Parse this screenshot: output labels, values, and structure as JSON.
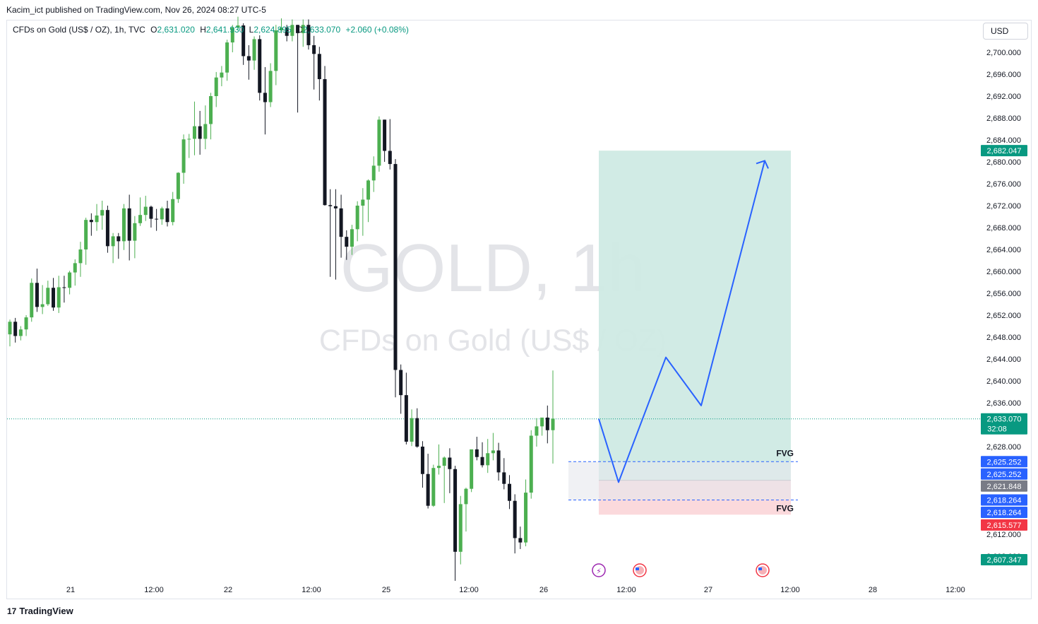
{
  "header": {
    "publisher_line": "Kacim_ict published on TradingView.com, Nov 26, 2024 08:27 UTC-5"
  },
  "legend": {
    "symbol": "CFDs on Gold (US$ / OZ), 1h, TVC",
    "open_label": "O",
    "open": "2,631.020",
    "high_label": "H",
    "high": "2,641.930",
    "low_label": "L",
    "low": "2,624.895",
    "close_label": "C",
    "close": "2,633.070",
    "change": "+2.060 (+0.08%)"
  },
  "currency_button": "USD",
  "watermark": {
    "title": "GOLD, 1h",
    "subtitle": "CFDs on Gold (US$ / OZ)"
  },
  "footer": {
    "brand": "TradingView",
    "logo_text": "17"
  },
  "colors": {
    "up": "#4caf50",
    "down": "#131722",
    "target_zone": "#cfeae4",
    "stop_zone": "#fbd9dc",
    "path": "#2962ff",
    "fvg_fill": "#e6e7ec",
    "last_price": "#089981"
  },
  "annotations": {
    "fvg_upper": "FVG",
    "fvg_lower": "FVG"
  },
  "price_axis": {
    "ticks": [
      "2,700.000",
      "2,696.000",
      "2,692.000",
      "2,688.000",
      "2,684.000",
      "2,680.000",
      "2,676.000",
      "2,672.000",
      "2,668.000",
      "2,664.000",
      "2,660.000",
      "2,656.000",
      "2,652.000",
      "2,648.000",
      "2,644.000",
      "2,640.000",
      "2,636.000",
      "2,628.000",
      "2,612.000",
      "2,608.000"
    ],
    "badges": [
      {
        "text": "2,682.047",
        "color": "#089981",
        "price": 2682.047
      },
      {
        "text": "2,633.070",
        "color": "#089981",
        "price": 2633.07,
        "sub": "32:08"
      },
      {
        "text": "2,625.252",
        "color": "#2962ff",
        "price": 2625.252
      },
      {
        "text": "2,625.252",
        "color": "#2962ff",
        "price": 2623.0
      },
      {
        "text": "2,621.848",
        "color": "#787b86",
        "price": 2620.8
      },
      {
        "text": "2,618.264",
        "color": "#2962ff",
        "price": 2618.264
      },
      {
        "text": "2,618.264",
        "color": "#2962ff",
        "price": 2616.0
      },
      {
        "text": "2,615.577",
        "color": "#f23645",
        "price": 2613.7
      },
      {
        "text": "2,607.347",
        "color": "#089981",
        "price": 2607.347
      }
    ]
  },
  "time_axis": {
    "labels": [
      "21",
      "12:00",
      "22",
      "12:00",
      "25",
      "12:00",
      "26",
      "12:00",
      "27",
      "12:00",
      "28",
      "12:00"
    ]
  },
  "chart_data": {
    "type": "candlestick",
    "symbol": "GOLD",
    "interval": "1h",
    "ylim": [
      2598,
      2705
    ],
    "y_reference": {
      "price": 2633.07,
      "style": "dotted"
    },
    "candles": [
      [
        2648.5,
        2651.2,
        2646.3,
        2650.8
      ],
      [
        2650.8,
        2651.5,
        2647.0,
        2648.2
      ],
      [
        2648.2,
        2650.0,
        2647.4,
        2649.4
      ],
      [
        2649.4,
        2652.0,
        2648.2,
        2651.6
      ],
      [
        2651.6,
        2658.7,
        2650.8,
        2657.9
      ],
      [
        2657.9,
        2660.5,
        2652.6,
        2653.5
      ],
      [
        2653.5,
        2657.5,
        2652.2,
        2654.0
      ],
      [
        2654.0,
        2658.3,
        2653.7,
        2657.0
      ],
      [
        2657.0,
        2658.8,
        2652.8,
        2653.4
      ],
      [
        2653.4,
        2659.2,
        2652.4,
        2657.1
      ],
      [
        2657.1,
        2659.2,
        2654.3,
        2657.0
      ],
      [
        2657.0,
        2660.1,
        2655.8,
        2659.8
      ],
      [
        2659.8,
        2662.2,
        2657.4,
        2661.5
      ],
      [
        2661.5,
        2665.4,
        2659.0,
        2664.0
      ],
      [
        2664.0,
        2669.8,
        2661.2,
        2669.4
      ],
      [
        2669.4,
        2670.6,
        2666.5,
        2669.0
      ],
      [
        2669.0,
        2672.3,
        2667.4,
        2670.2
      ],
      [
        2670.2,
        2672.9,
        2667.6,
        2671.2
      ],
      [
        2671.2,
        2672.0,
        2663.4,
        2664.6
      ],
      [
        2664.6,
        2667.0,
        2661.5,
        2666.4
      ],
      [
        2666.4,
        2667.0,
        2662.3,
        2665.5
      ],
      [
        2665.5,
        2672.3,
        2663.9,
        2671.5
      ],
      [
        2671.5,
        2674.0,
        2662.0,
        2665.6
      ],
      [
        2665.6,
        2670.1,
        2662.4,
        2668.8
      ],
      [
        2668.8,
        2673.5,
        2668.3,
        2670.3
      ],
      [
        2670.3,
        2673.8,
        2669.2,
        2671.8
      ],
      [
        2671.8,
        2672.0,
        2668.0,
        2669.6
      ],
      [
        2669.6,
        2671.4,
        2667.4,
        2669.5
      ],
      [
        2669.5,
        2671.8,
        2668.5,
        2671.5
      ],
      [
        2671.5,
        2672.9,
        2668.2,
        2669.0
      ],
      [
        2669.0,
        2674.5,
        2668.4,
        2673.2
      ],
      [
        2673.2,
        2678.1,
        2672.5,
        2678.0
      ],
      [
        2678.0,
        2685.0,
        2676.0,
        2684.1
      ],
      [
        2684.1,
        2685.1,
        2680.7,
        2684.2
      ],
      [
        2684.2,
        2691.0,
        2681.2,
        2686.5
      ],
      [
        2686.5,
        2689.3,
        2681.3,
        2684.2
      ],
      [
        2684.2,
        2690.3,
        2682.3,
        2686.9
      ],
      [
        2686.9,
        2692.6,
        2684.1,
        2692.0
      ],
      [
        2692.0,
        2696.4,
        2690.0,
        2695.4
      ],
      [
        2695.4,
        2697.5,
        2693.8,
        2696.3
      ],
      [
        2696.3,
        2702.3,
        2694.8,
        2701.8
      ],
      [
        2701.8,
        2705.0,
        2700.0,
        2704.5
      ],
      [
        2704.5,
        2706.5,
        2704.0,
        2704.9
      ],
      [
        2704.9,
        2705.3,
        2697.7,
        2699.3
      ],
      [
        2699.3,
        2701.3,
        2695.0,
        2698.5
      ],
      [
        2698.5,
        2702.9,
        2696.8,
        2702.4
      ],
      [
        2702.4,
        2703.1,
        2691.2,
        2692.6
      ],
      [
        2692.6,
        2697.3,
        2685.0,
        2690.9
      ],
      [
        2690.9,
        2698.0,
        2690.0,
        2696.6
      ],
      [
        2696.6,
        2705.0,
        2694.0,
        2704.0
      ],
      [
        2704.0,
        2706.2,
        2703.5,
        2704.5
      ],
      [
        2704.5,
        2705.0,
        2702.0,
        2703.0
      ],
      [
        2703.0,
        2706.0,
        2702.0,
        2705.0
      ],
      [
        2705.0,
        2705.0,
        2689.0,
        2703.5
      ],
      [
        2703.5,
        2706.0,
        2701.0,
        2705.0
      ],
      [
        2705.0,
        2706.0,
        2700.5,
        2701.3
      ],
      [
        2701.3,
        2703.0,
        2693.2,
        2699.7
      ],
      [
        2699.7,
        2701.0,
        2691.2,
        2695.1
      ],
      [
        2695.1,
        2697.5,
        2672.0,
        2672.1
      ],
      [
        2672.1,
        2675.0,
        2659.0,
        2671.9
      ],
      [
        2671.9,
        2675.0,
        2658.5,
        2671.5
      ],
      [
        2671.5,
        2674.0,
        2662.5,
        2666.3
      ],
      [
        2666.3,
        2667.5,
        2662.1,
        2664.5
      ],
      [
        2664.5,
        2668.5,
        2663.0,
        2667.7
      ],
      [
        2667.7,
        2672.8,
        2665.5,
        2672.0
      ],
      [
        2672.0,
        2675.2,
        2666.5,
        2673.1
      ],
      [
        2673.1,
        2676.8,
        2669.0,
        2676.6
      ],
      [
        2676.6,
        2681.0,
        2674.5,
        2679.3
      ],
      [
        2679.3,
        2688.3,
        2678.2,
        2687.7
      ],
      [
        2687.7,
        2687.7,
        2680.0,
        2682.0
      ],
      [
        2682.0,
        2687.8,
        2678.6,
        2679.6
      ],
      [
        2679.6,
        2680.5,
        2637.0,
        2642.0
      ],
      [
        2642.0,
        2643.0,
        2634.0,
        2637.4
      ],
      [
        2637.4,
        2641.5,
        2628.4,
        2628.9
      ],
      [
        2628.9,
        2634.8,
        2628.1,
        2633.2
      ],
      [
        2633.2,
        2635.0,
        2627.8,
        2628.0
      ],
      [
        2628.0,
        2629.0,
        2620.5,
        2623.0
      ],
      [
        2623.0,
        2626.7,
        2616.7,
        2617.2
      ],
      [
        2617.2,
        2624.7,
        2617.0,
        2624.1
      ],
      [
        2624.1,
        2628.4,
        2622.9,
        2624.5
      ],
      [
        2624.5,
        2626.2,
        2617.7,
        2626.0
      ],
      [
        2626.0,
        2627.7,
        2619.5,
        2623.9
      ],
      [
        2623.9,
        2624.5,
        2603.5,
        2608.8
      ],
      [
        2608.8,
        2619.0,
        2606.5,
        2617.5
      ],
      [
        2617.5,
        2620.5,
        2612.5,
        2620.3
      ],
      [
        2620.3,
        2627.0,
        2619.7,
        2627.5
      ],
      [
        2627.5,
        2629.8,
        2625.5,
        2626.1
      ],
      [
        2626.1,
        2628.8,
        2624.2,
        2624.6
      ],
      [
        2624.6,
        2629.4,
        2623.2,
        2626.8
      ],
      [
        2626.8,
        2630.5,
        2625.5,
        2627.3
      ],
      [
        2627.3,
        2628.7,
        2621.8,
        2623.3
      ],
      [
        2623.3,
        2625.9,
        2620.2,
        2621.2
      ],
      [
        2621.2,
        2622.8,
        2616.6,
        2618.1
      ],
      [
        2618.1,
        2619.3,
        2608.5,
        2611.3
      ],
      [
        2611.3,
        2613.4,
        2609.3,
        2610.5
      ],
      [
        2610.5,
        2622.0,
        2609.8,
        2619.6
      ],
      [
        2619.6,
        2631.0,
        2618.5,
        2630.0
      ],
      [
        2630.0,
        2633.2,
        2628.0,
        2631.7
      ],
      [
        2631.7,
        2633.0,
        2630.0,
        2633.3
      ],
      [
        2633.3,
        2635.5,
        2628.6,
        2631.0
      ],
      [
        2631.0,
        2641.9,
        2624.9,
        2633.1
      ]
    ],
    "trade_zone": {
      "entry": 2621.848,
      "target": 2682.047,
      "stop": 2615.577
    },
    "fvg_zone": {
      "top": 2625.252,
      "bottom": 2618.264
    },
    "projected_path": [
      2633.07,
      2621.5,
      2644.3,
      2635.5,
      2680.2
    ]
  }
}
